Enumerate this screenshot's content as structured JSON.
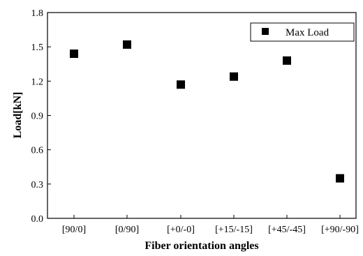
{
  "chart_data": {
    "type": "scatter",
    "title": "",
    "xlabel": "Fiber orientation angles",
    "ylabel": "Load[kN]",
    "categories": [
      "[90/0]",
      "[0/90]",
      "[+0/-0]",
      "[+15/-15]",
      "[+45/-45]",
      "[+90/-90]"
    ],
    "series": [
      {
        "name": "Max Load",
        "values": [
          1.44,
          1.52,
          1.17,
          1.24,
          1.38,
          0.35
        ]
      }
    ],
    "ylim": [
      0.0,
      1.8
    ],
    "yticks": [
      "0.0",
      "0.3",
      "0.6",
      "0.9",
      "1.2",
      "1.5",
      "1.8"
    ],
    "grid": false,
    "legend_position": "top-right",
    "marker": "square",
    "color": "#000000"
  }
}
